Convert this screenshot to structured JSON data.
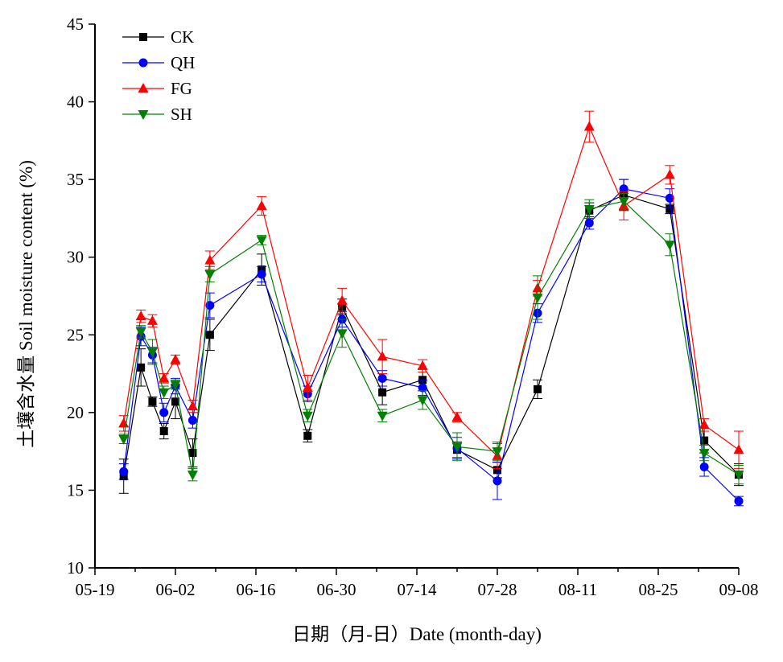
{
  "chart_data": {
    "type": "line",
    "xlabel": "日期（月-日）Date (month-day)",
    "ylabel": "土壤含水量 Soil moisture content (%)",
    "ylim": [
      10,
      45
    ],
    "yticks": [
      10,
      15,
      20,
      25,
      30,
      35,
      40,
      45
    ],
    "xlim": [
      "2017-05-19",
      "2017-09-08"
    ],
    "xticks": [
      "05-19",
      "06-02",
      "06-16",
      "06-30",
      "07-14",
      "07-28",
      "08-11",
      "08-25",
      "09-08"
    ],
    "x_tick_dates": [
      "2017-05-19",
      "2017-06-02",
      "2017-06-16",
      "2017-06-30",
      "2017-07-14",
      "2017-07-28",
      "2017-08-11",
      "2017-08-25",
      "2017-09-08"
    ],
    "grid": false,
    "legend_position": "top-left",
    "x": [
      "2017-05-24",
      "2017-05-27",
      "2017-05-29",
      "2017-05-31",
      "2017-06-02",
      "2017-06-05",
      "2017-06-08",
      "2017-06-17",
      "2017-06-25",
      "2017-07-01",
      "2017-07-08",
      "2017-07-15",
      "2017-07-21",
      "2017-07-28",
      "2017-08-04",
      "2017-08-13",
      "2017-08-19",
      "2017-08-27",
      "2017-09-02",
      "2017-09-08"
    ],
    "series": [
      {
        "name": "CK",
        "color": "#000000",
        "marker": "square",
        "values": [
          15.9,
          22.9,
          20.7,
          18.8,
          20.7,
          17.4,
          25.0,
          29.2,
          18.5,
          26.8,
          21.3,
          22.1,
          17.6,
          16.3,
          21.5,
          33.0,
          34.0,
          33.1,
          18.2,
          16.0
        ],
        "errors": [
          1.1,
          1.2,
          0.3,
          0.5,
          1.1,
          0.9,
          1.0,
          1.0,
          0.4,
          0.5,
          0.8,
          0.7,
          0.5,
          0.5,
          0.6,
          0.5,
          1.0,
          0.3,
          0.8,
          0.7
        ]
      },
      {
        "name": "QH",
        "color": "#0000ff",
        "marker": "circle",
        "values": [
          16.2,
          24.9,
          23.7,
          20.0,
          21.7,
          19.5,
          26.9,
          28.9,
          21.2,
          26.0,
          22.2,
          21.6,
          17.7,
          15.6,
          26.4,
          32.2,
          34.4,
          33.8,
          16.5,
          14.3
        ],
        "errors": [
          0.5,
          0.6,
          0.5,
          0.6,
          0.5,
          0.5,
          0.8,
          0.5,
          0.5,
          0.5,
          0.5,
          0.5,
          0.7,
          1.2,
          0.6,
          0.4,
          0.6,
          0.6,
          0.6,
          0.3
        ]
      },
      {
        "name": "FG",
        "color": "#ff0000",
        "marker": "triangle-up",
        "values": [
          19.3,
          26.2,
          25.9,
          22.2,
          23.4,
          20.4,
          29.8,
          33.3,
          21.6,
          27.2,
          23.6,
          23.0,
          19.7,
          17.2,
          28.0,
          38.4,
          33.3,
          35.3,
          19.2,
          17.6
        ],
        "errors": [
          0.5,
          0.4,
          0.4,
          0.3,
          0.3,
          0.4,
          0.6,
          0.6,
          0.8,
          0.8,
          1.1,
          0.4,
          0.3,
          0.8,
          0.5,
          1.0,
          0.9,
          0.6,
          0.4,
          1.2
        ]
      },
      {
        "name": "SH",
        "color": "#008000",
        "marker": "triangle-down",
        "values": [
          18.3,
          25.2,
          23.9,
          21.3,
          21.8,
          16.0,
          28.9,
          31.1,
          19.8,
          25.1,
          19.8,
          20.8,
          17.8,
          17.5,
          27.4,
          33.1,
          33.6,
          30.8,
          17.4,
          16.0
        ],
        "errors": [
          0.3,
          0.4,
          0.8,
          0.4,
          0.3,
          0.4,
          0.5,
          0.3,
          0.4,
          0.9,
          0.4,
          0.6,
          0.9,
          0.6,
          1.4,
          0.6,
          0.5,
          0.7,
          0.5,
          0.6
        ]
      }
    ]
  }
}
